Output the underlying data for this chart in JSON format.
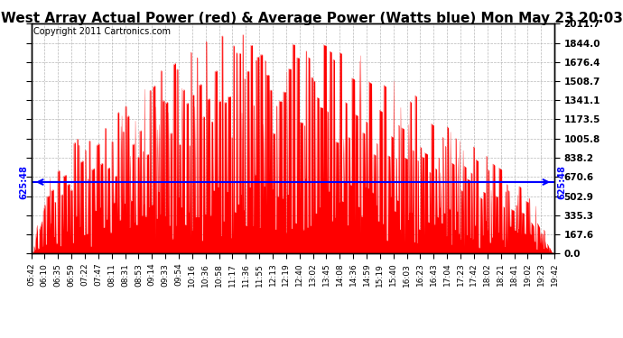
{
  "title": "West Array Actual Power (red) & Average Power (Watts blue) Mon May 23 20:03",
  "copyright": "Copyright 2011 Cartronics.com",
  "average_power": 625.48,
  "avg_label": "625:48",
  "ymax": 2011.7,
  "ymin": 0.0,
  "yticks": [
    0.0,
    167.6,
    335.3,
    502.9,
    670.6,
    838.2,
    1005.8,
    1173.5,
    1341.1,
    1508.7,
    1676.4,
    1844.0,
    2011.7
  ],
  "bg_color": "#ffffff",
  "plot_bg_color": "#ffffff",
  "grid_color": "#b0b0b0",
  "red_color": "#ff0000",
  "blue_color": "#0000ff",
  "title_fontsize": 11,
  "copyright_fontsize": 7,
  "xtick_labels": [
    "05:42",
    "06:10",
    "06:35",
    "06:59",
    "07:22",
    "07:47",
    "08:11",
    "08:31",
    "08:53",
    "09:14",
    "09:33",
    "09:54",
    "10:16",
    "10:36",
    "10:58",
    "11:17",
    "11:36",
    "11:55",
    "12:13",
    "12:19",
    "12:40",
    "13:02",
    "13:45",
    "14:08",
    "14:36",
    "14:59",
    "15:19",
    "15:40",
    "16:03",
    "16:23",
    "16:43",
    "17:04",
    "17:23",
    "17:42",
    "18:02",
    "18:21",
    "18:41",
    "19:02",
    "19:23",
    "19:42"
  ]
}
